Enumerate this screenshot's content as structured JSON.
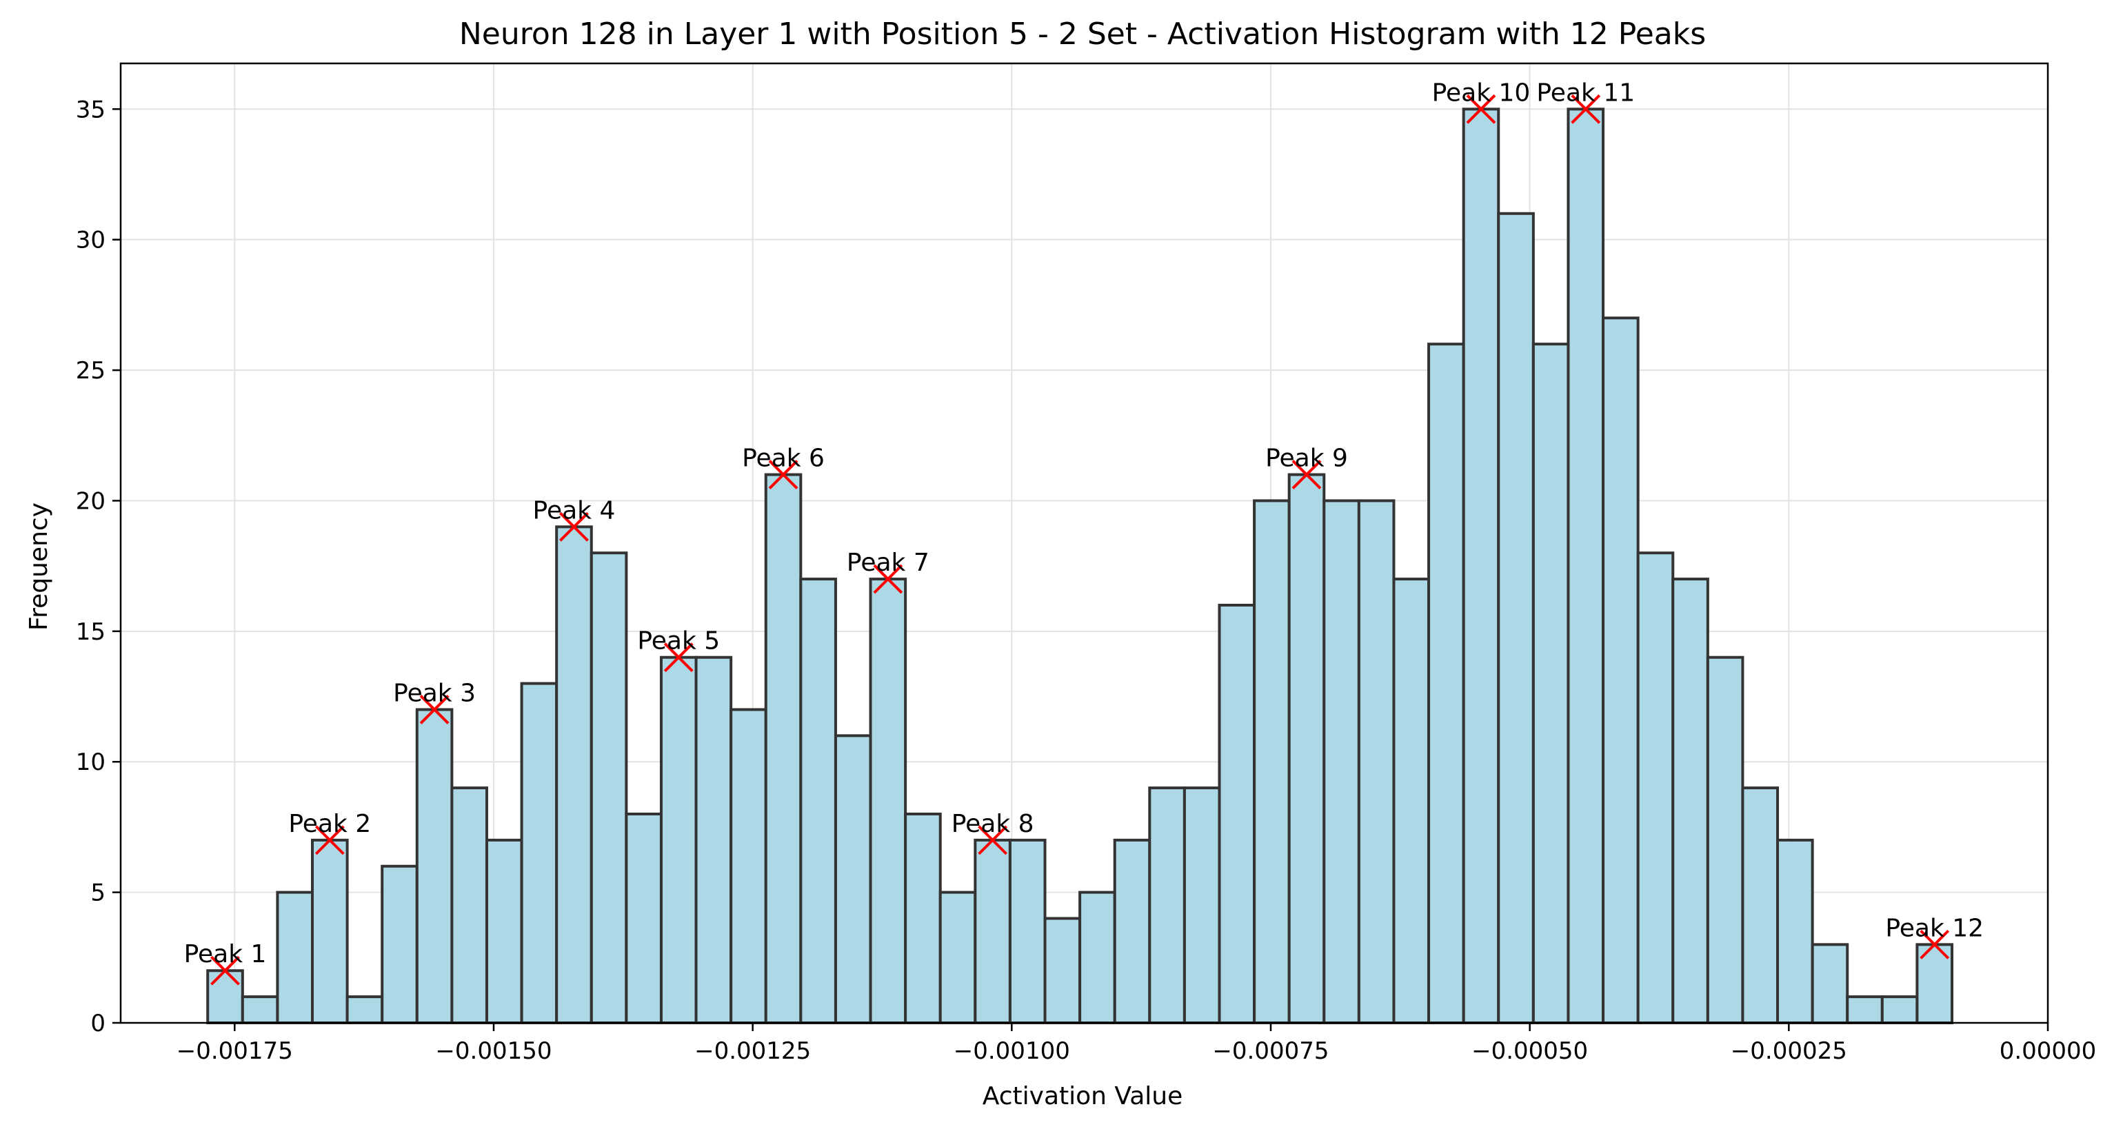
{
  "chart_data": {
    "type": "bar",
    "title": "Neuron 128 in Layer 1 with Position 5 - 2 Set - Activation Histogram with 12 Peaks",
    "xlabel": "Activation Value",
    "ylabel": "Frequency",
    "xlim": [
      -0.00186,
      0.0
    ],
    "ylim": [
      0,
      36.75
    ],
    "grid": true,
    "bin_start": -0.001776,
    "bin_width": 3.367e-05,
    "x_ticks": [
      {
        "value": -0.00175,
        "label": "−0.00175"
      },
      {
        "value": -0.0015,
        "label": "−0.00150"
      },
      {
        "value": -0.00125,
        "label": "−0.00125"
      },
      {
        "value": -0.001,
        "label": "−0.00100"
      },
      {
        "value": -0.00075,
        "label": "−0.00075"
      },
      {
        "value": -0.0005,
        "label": "−0.00050"
      },
      {
        "value": -0.00025,
        "label": "−0.00025"
      },
      {
        "value": 0.0,
        "label": "0.00000"
      }
    ],
    "y_ticks": [
      {
        "value": 0,
        "label": "0"
      },
      {
        "value": 5,
        "label": "5"
      },
      {
        "value": 10,
        "label": "10"
      },
      {
        "value": 15,
        "label": "15"
      },
      {
        "value": 20,
        "label": "20"
      },
      {
        "value": 25,
        "label": "25"
      },
      {
        "value": 30,
        "label": "30"
      },
      {
        "value": 35,
        "label": "35"
      }
    ],
    "values": [
      2,
      1,
      5,
      7,
      1,
      6,
      12,
      9,
      7,
      13,
      19,
      18,
      8,
      14,
      14,
      12,
      21,
      17,
      11,
      17,
      8,
      5,
      7,
      7,
      4,
      5,
      7,
      9,
      9,
      16,
      20,
      21,
      20,
      20,
      17,
      26,
      35,
      31,
      26,
      35,
      27,
      18,
      17,
      14,
      9,
      7,
      3,
      1,
      1,
      3
    ],
    "peaks": [
      {
        "label": "Peak 1",
        "bin": 0,
        "x": -0.001759,
        "y": 2
      },
      {
        "label": "Peak 2",
        "bin": 3,
        "x": -0.001658,
        "y": 7
      },
      {
        "label": "Peak 3",
        "bin": 6,
        "x": -0.001557,
        "y": 12
      },
      {
        "label": "Peak 4",
        "bin": 10,
        "x": -0.001423,
        "y": 19
      },
      {
        "label": "Peak 5",
        "bin": 13,
        "x": -0.001322,
        "y": 14
      },
      {
        "label": "Peak 6",
        "bin": 16,
        "x": -0.001221,
        "y": 21
      },
      {
        "label": "Peak 7",
        "bin": 19,
        "x": -0.00112,
        "y": 17
      },
      {
        "label": "Peak 8",
        "bin": 22,
        "x": -0.001019,
        "y": 7
      },
      {
        "label": "Peak 9",
        "bin": 31,
        "x": -0.000716,
        "y": 21
      },
      {
        "label": "Peak 10",
        "bin": 36,
        "x": -0.000548,
        "y": 35
      },
      {
        "label": "Peak 11",
        "bin": 39,
        "x": -0.000447,
        "y": 35
      },
      {
        "label": "Peak 12",
        "bin": 49,
        "x": -0.00011,
        "y": 3
      }
    ],
    "colors": {
      "bar_fill": "#add8e6",
      "bar_edge": "#333333",
      "peak_marker": "#ff0000"
    }
  }
}
